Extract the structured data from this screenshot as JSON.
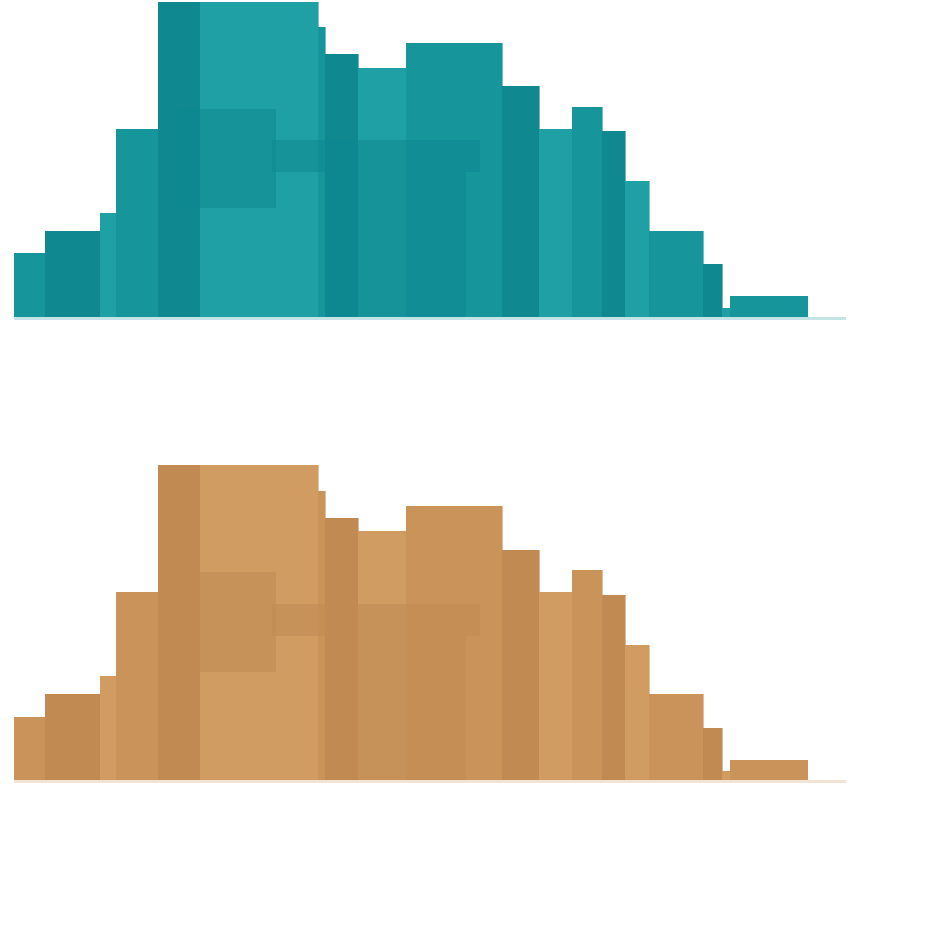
{
  "step_silhouette": {
    "steps": [
      {
        "width": 35,
        "height": 70
      },
      {
        "width": 60,
        "height": 95
      },
      {
        "width": 18,
        "height": 115
      },
      {
        "width": 47,
        "height": 208
      },
      {
        "width": 46,
        "height": 348
      },
      {
        "width": 130,
        "height": 348
      },
      {
        "width": 8,
        "height": 320
      },
      {
        "width": 37,
        "height": 290
      },
      {
        "width": 52,
        "height": 275
      },
      {
        "width": 107,
        "height": 303
      },
      {
        "width": 40,
        "height": 255
      },
      {
        "width": 37,
        "height": 208
      },
      {
        "width": 33,
        "height": 232
      },
      {
        "width": 25,
        "height": 205
      },
      {
        "width": 27,
        "height": 150
      },
      {
        "width": 60,
        "height": 95
      },
      {
        "width": 21,
        "height": 58
      },
      {
        "width": 8,
        "height": 10
      },
      {
        "width": 86,
        "height": 23
      }
    ]
  },
  "panels": [
    {
      "fill": "#16959b",
      "shade": "#0f8890",
      "highlight": "#1ea0a5"
    },
    {
      "fill": "#c99359",
      "shade": "#c08a52",
      "highlight": "#d09c62"
    }
  ]
}
